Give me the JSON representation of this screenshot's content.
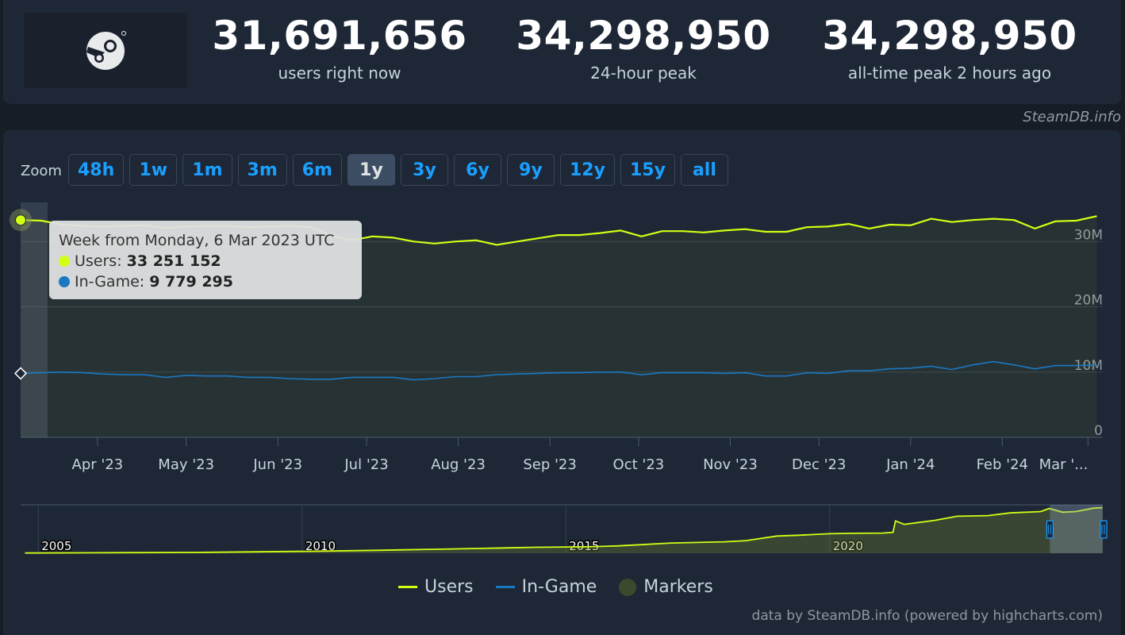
{
  "header": {
    "logo_icon": "steam-logo-icon",
    "stats": [
      {
        "value": "31,691,656",
        "label": "users right now"
      },
      {
        "value": "34,298,950",
        "label": "24-hour peak"
      },
      {
        "value": "34,298,950",
        "label": "all-time peak 2 hours ago"
      }
    ],
    "credit": "SteamDB.info"
  },
  "zoom": {
    "label": "Zoom",
    "buttons": [
      "48h",
      "1w",
      "1m",
      "3m",
      "6m",
      "1y",
      "3y",
      "6y",
      "9y",
      "12y",
      "15y",
      "all"
    ],
    "active": "1y"
  },
  "tooltip": {
    "title": "Week from Monday, 6 Mar 2023 UTC",
    "users_label": "Users:",
    "users_value": "33 251 152",
    "ingame_label": "In-Game:",
    "ingame_value": "9 779 295"
  },
  "legend": {
    "users": "Users",
    "ingame": "In-Game",
    "markers": "Markers"
  },
  "credit_bottom": "data by SteamDB.info (powered by highcharts.com)",
  "colors": {
    "users": "#d2ff13",
    "ingame": "#1a78c2",
    "markers": "#3b4a2c",
    "background": "#1e2736"
  },
  "chart_data": {
    "type": "line",
    "title": "",
    "x_unit": "week",
    "x": [
      "2023-03-06",
      "2023-03-13",
      "2023-03-20",
      "2023-03-27",
      "2023-04-03",
      "2023-04-10",
      "2023-04-17",
      "2023-04-24",
      "2023-05-01",
      "2023-05-08",
      "2023-05-15",
      "2023-05-22",
      "2023-05-29",
      "2023-06-05",
      "2023-06-12",
      "2023-06-19",
      "2023-06-26",
      "2023-07-03",
      "2023-07-10",
      "2023-07-17",
      "2023-07-24",
      "2023-07-31",
      "2023-08-07",
      "2023-08-14",
      "2023-08-21",
      "2023-08-28",
      "2023-09-04",
      "2023-09-11",
      "2023-09-18",
      "2023-09-25",
      "2023-10-02",
      "2023-10-09",
      "2023-10-16",
      "2023-10-23",
      "2023-10-30",
      "2023-11-06",
      "2023-11-13",
      "2023-11-20",
      "2023-11-27",
      "2023-12-04",
      "2023-12-11",
      "2023-12-18",
      "2023-12-25",
      "2024-01-01",
      "2024-01-08",
      "2024-01-15",
      "2024-01-22",
      "2024-01-29",
      "2024-02-05",
      "2024-02-12",
      "2024-02-19",
      "2024-02-26",
      "2024-03-04"
    ],
    "series": [
      {
        "name": "Users",
        "values": [
          33.3,
          33.2,
          32.6,
          32.4,
          32.3,
          32.4,
          32.5,
          32.1,
          32.3,
          32.4,
          32.4,
          32.2,
          32.3,
          32.4,
          32.2,
          30.9,
          30.2,
          30.8,
          30.6,
          30.0,
          29.7,
          30.0,
          30.2,
          29.5,
          30.0,
          30.5,
          31.0,
          31.0,
          31.3,
          31.7,
          30.8,
          31.6,
          31.6,
          31.4,
          31.7,
          31.9,
          31.5,
          31.5,
          32.2,
          32.3,
          32.7,
          32.0,
          32.6,
          32.5,
          33.5,
          33.0,
          33.3,
          33.5,
          33.3,
          32.0,
          33.1,
          33.2,
          33.9
        ]
      },
      {
        "name": "In-Game",
        "values": [
          9.8,
          9.9,
          10.0,
          9.9,
          9.7,
          9.6,
          9.6,
          9.2,
          9.5,
          9.4,
          9.4,
          9.2,
          9.2,
          9.0,
          8.9,
          8.9,
          9.2,
          9.2,
          9.2,
          8.8,
          9.0,
          9.3,
          9.3,
          9.6,
          9.7,
          9.8,
          9.9,
          9.9,
          10.0,
          10.0,
          9.6,
          9.9,
          9.9,
          9.9,
          9.8,
          9.9,
          9.4,
          9.4,
          9.9,
          9.8,
          10.2,
          10.2,
          10.5,
          10.6,
          10.9,
          10.4,
          11.1,
          11.6,
          11.1,
          10.5,
          11.0,
          11.0,
          11.1
        ]
      }
    ],
    "ylim": [
      0,
      36
    ],
    "y_ticks": [
      0,
      10,
      20,
      30
    ],
    "y_tick_labels": [
      "0",
      "10M",
      "20M",
      "30M"
    ],
    "x_tick_labels": [
      "Apr '23",
      "May '23",
      "Jun '23",
      "Jul '23",
      "Aug '23",
      "Sep '23",
      "Oct '23",
      "Nov '23",
      "Dec '23",
      "Jan '24",
      "Feb '24",
      "Mar '..."
    ],
    "x_tick_dates": [
      "2023-04-01",
      "2023-05-01",
      "2023-06-01",
      "2023-07-01",
      "2023-08-01",
      "2023-09-01",
      "2023-10-01",
      "2023-11-01",
      "2023-12-01",
      "2024-01-01",
      "2024-02-01",
      "2024-03-01"
    ],
    "x_range": [
      "2023-03-06",
      "2024-03-06"
    ],
    "grid": true,
    "legend_position": "bottom-center",
    "navigator": {
      "year_labels": [
        "2005",
        "2010",
        "2015",
        "2020"
      ],
      "year_dates": [
        "2004-01-01",
        "2009-01-01",
        "2014-01-01",
        "2019-01-01"
      ],
      "x_range": [
        "2003-09-01",
        "2024-03-06"
      ],
      "ylim": [
        0,
        36
      ],
      "selected_range": [
        "2023-03-06",
        "2024-03-06"
      ],
      "users_trend": {
        "x": [
          "2003-10-01",
          "2005-06-01",
          "2006-01-01",
          "2007-01-01",
          "2008-01-01",
          "2009-06-01",
          "2010-06-01",
          "2011-06-01",
          "2012-06-01",
          "2013-06-01",
          "2014-06-01",
          "2015-01-01",
          "2016-01-01",
          "2017-01-01",
          "2017-06-01",
          "2018-01-01",
          "2018-06-01",
          "2019-01-01",
          "2019-06-01",
          "2020-01-01",
          "2020-03-15",
          "2020-04-01",
          "2020-06-01",
          "2021-01-01",
          "2021-06-01",
          "2022-01-01",
          "2022-06-01",
          "2023-01-01",
          "2023-03-01",
          "2023-06-01",
          "2023-09-01",
          "2024-01-01",
          "2024-03-04"
        ],
        "values": [
          0.2,
          0.4,
          0.5,
          0.6,
          1.0,
          1.6,
          2.2,
          2.9,
          3.6,
          4.4,
          4.8,
          5.5,
          7.6,
          8.5,
          9.4,
          12.8,
          13.4,
          14.5,
          14.8,
          15.0,
          15.5,
          24.0,
          21.5,
          24.5,
          27.5,
          28.0,
          30.0,
          31.0,
          33.3,
          30.5,
          31.0,
          33.5,
          33.9
        ]
      }
    }
  }
}
